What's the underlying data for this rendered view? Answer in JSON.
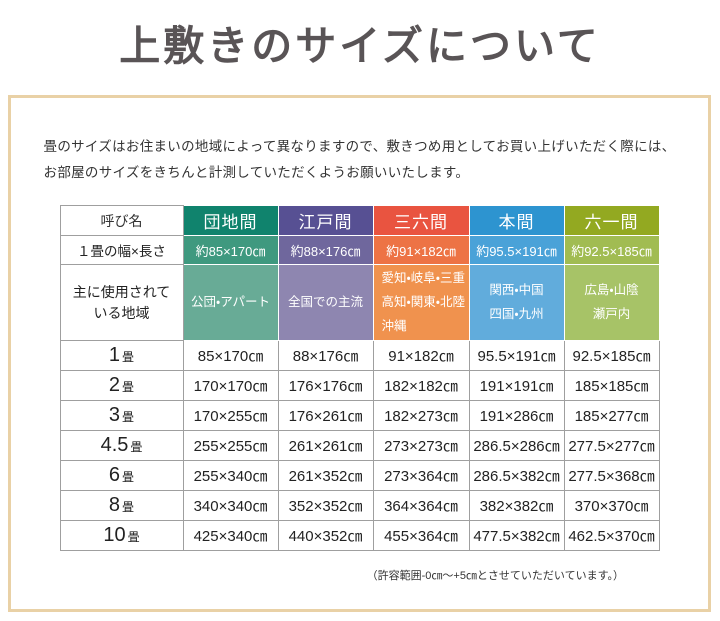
{
  "page": {
    "title": "上敷きのサイズについて",
    "intro_line1": "畳のサイズはお住まいの地域によって異なりますので、敷きつめ用としてお買い上げいただく際には、",
    "intro_line2": "お部屋のサイズをきちんと計測していただくようお願いいたします。",
    "footer_note": "（許容範囲-0㎝～+5㎝とさせていただいています。）",
    "colors": {
      "frame_border": "#e9d1a6",
      "title_text": "#595456",
      "grid_line": "#9f9f9f"
    }
  },
  "table": {
    "row_headers": {
      "name": "呼び名",
      "width_length": "１畳の幅×長さ",
      "region_line1": "主に使用されて",
      "region_line2": "いる地域"
    },
    "columns": [
      {
        "label": "団地間",
        "unit_size": "約85×170㎝",
        "regions": [
          "公団・アパート"
        ],
        "colors": {
          "header": "#10836d",
          "mid": "#3f997f",
          "light": "#68ab96"
        }
      },
      {
        "label": "江戸間",
        "unit_size": "約88×176㎝",
        "regions": [
          "全国での主流"
        ],
        "colors": {
          "header": "#575093",
          "mid": "#6f679d",
          "light": "#8e86b0"
        }
      },
      {
        "label": "三六間",
        "unit_size": "約91×182㎝",
        "regions": [
          "愛知・岐阜・三重",
          "高知・関東・北陸",
          "沖縄"
        ],
        "colors": {
          "header": "#e95440",
          "mid": "#ed7345",
          "light": "#f0924e"
        }
      },
      {
        "label": "本間",
        "unit_size": "約95.5×191㎝",
        "regions": [
          "関西・中国",
          "四国・九州"
        ],
        "colors": {
          "header": "#2d94d0",
          "mid": "#4aa2d8",
          "light": "#61acdc"
        }
      },
      {
        "label": "六一間",
        "unit_size": "約92.5×185㎝",
        "regions": [
          "広島・山陰",
          "瀬戸内"
        ],
        "colors": {
          "header": "#93a921",
          "mid": "#a1bc52",
          "light": "#a7c367"
        }
      }
    ],
    "size_rows": [
      {
        "count": "1",
        "unit": "畳",
        "values": [
          "85×170㎝",
          "88×176㎝",
          "91×182㎝",
          "95.5×191㎝",
          "92.5×185㎝"
        ]
      },
      {
        "count": "2",
        "unit": "畳",
        "values": [
          "170×170㎝",
          "176×176㎝",
          "182×182㎝",
          "191×191㎝",
          "185×185㎝"
        ]
      },
      {
        "count": "3",
        "unit": "畳",
        "values": [
          "170×255㎝",
          "176×261㎝",
          "182×273㎝",
          "191×286㎝",
          "185×277㎝"
        ]
      },
      {
        "count": "4.5",
        "unit": "畳",
        "values": [
          "255×255㎝",
          "261×261㎝",
          "273×273㎝",
          "286.5×286㎝",
          "277.5×277㎝"
        ]
      },
      {
        "count": "6",
        "unit": "畳",
        "values": [
          "255×340㎝",
          "261×352㎝",
          "273×364㎝",
          "286.5×382㎝",
          "277.5×368㎝"
        ]
      },
      {
        "count": "8",
        "unit": "畳",
        "values": [
          "340×340㎝",
          "352×352㎝",
          "364×364㎝",
          "382×382㎝",
          "370×370㎝"
        ]
      },
      {
        "count": "10",
        "unit": "畳",
        "values": [
          "425×340㎝",
          "440×352㎝",
          "455×364㎝",
          "477.5×382㎝",
          "462.5×370㎝"
        ]
      }
    ]
  }
}
